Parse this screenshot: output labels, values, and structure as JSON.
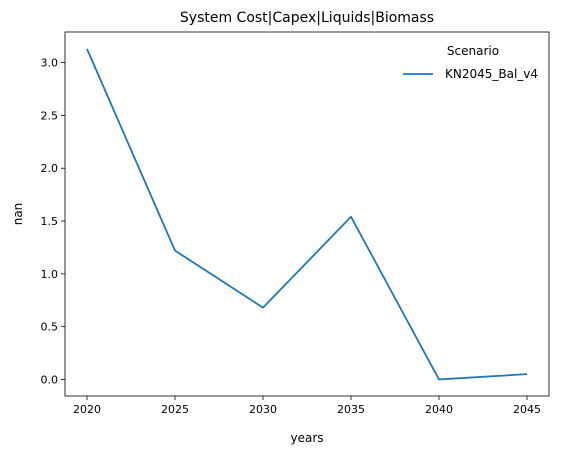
{
  "chart_data": {
    "type": "line",
    "title": "System Cost|Capex|Liquids|Biomass",
    "xlabel": "years",
    "ylabel": "nan",
    "x": [
      2020,
      2025,
      2030,
      2035,
      2040,
      2045
    ],
    "xticks": [
      "2020",
      "2025",
      "2030",
      "2035",
      "2040",
      "2045"
    ],
    "yticks": [
      "0.0",
      "0.5",
      "1.0",
      "1.5",
      "2.0",
      "2.5",
      "3.0"
    ],
    "xlim": [
      2018.75,
      2046.25
    ],
    "ylim": [
      -0.157,
      3.29
    ],
    "grid": false,
    "legend": {
      "title": "Scenario",
      "placement": "top-right"
    },
    "series": [
      {
        "name": "KN2045_Bal_v4",
        "color": "#1f77b4",
        "values": [
          3.13,
          1.22,
          0.68,
          1.54,
          0.0,
          0.05
        ]
      }
    ]
  }
}
